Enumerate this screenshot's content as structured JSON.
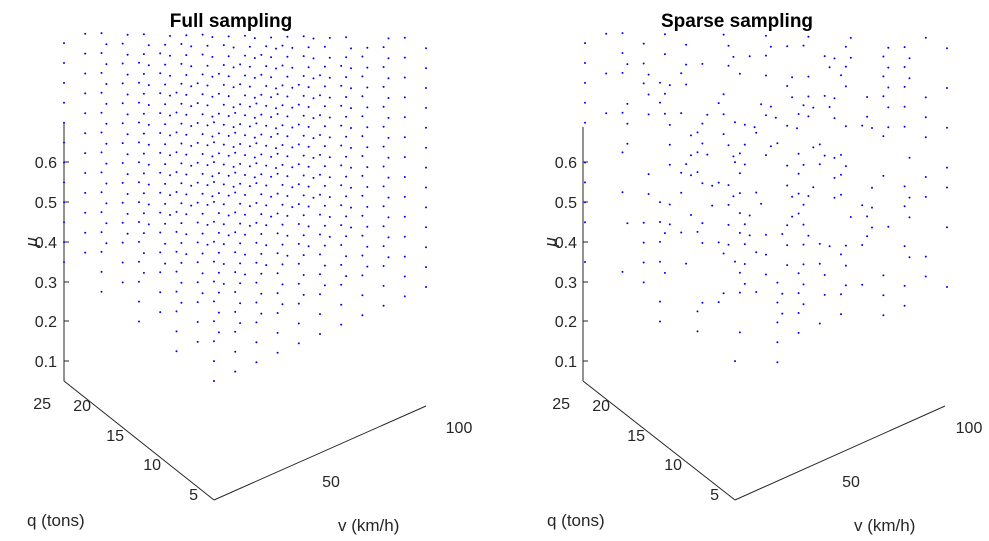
{
  "colors": {
    "points": "#0000ff",
    "axes": "#262626"
  },
  "chart_data": [
    {
      "type": "scatter3d",
      "title": "Full sampling",
      "xlabel": "v (km/h)",
      "ylabel": "q (tons)",
      "zlabel": "μ",
      "xticks": [
        50,
        100
      ],
      "yticks": [
        5,
        10,
        15,
        20,
        25
      ],
      "zticks": [
        0.1,
        0.2,
        0.3,
        0.4,
        0.5,
        0.6
      ],
      "xlim": [
        20,
        120
      ],
      "ylim": [
        5,
        25
      ],
      "zlim": [
        0.05,
        0.7
      ],
      "grid": false,
      "sampling": "full",
      "v_levels": [
        20,
        30,
        40,
        50,
        60,
        70,
        80,
        90,
        100,
        110,
        120
      ],
      "q_levels": [
        5,
        10,
        15,
        20,
        25
      ],
      "mu_levels": [
        0.05,
        0.1,
        0.15,
        0.2,
        0.25,
        0.3,
        0.35,
        0.4,
        0.45,
        0.5,
        0.55,
        0.6,
        0.65,
        0.7
      ]
    },
    {
      "type": "scatter3d",
      "title": "Sparse sampling",
      "xlabel": "v (km/h)",
      "ylabel": "q (tons)",
      "zlabel": "μ",
      "xticks": [
        50,
        100
      ],
      "yticks": [
        5,
        10,
        15,
        20,
        25
      ],
      "zticks": [
        0.1,
        0.2,
        0.3,
        0.4,
        0.5,
        0.6
      ],
      "xlim": [
        20,
        120
      ],
      "ylim": [
        5,
        25
      ],
      "zlim": [
        0.05,
        0.7
      ],
      "grid": false,
      "sampling": "sparse (random subset of the full grid)",
      "v_levels": [
        20,
        30,
        40,
        50,
        60,
        70,
        80,
        90,
        100,
        110,
        120
      ],
      "q_levels": [
        5,
        10,
        15,
        20,
        25
      ],
      "mu_levels": [
        0.05,
        0.1,
        0.15,
        0.2,
        0.25,
        0.3,
        0.35,
        0.4,
        0.45,
        0.5,
        0.55,
        0.6,
        0.65,
        0.7
      ]
    }
  ]
}
